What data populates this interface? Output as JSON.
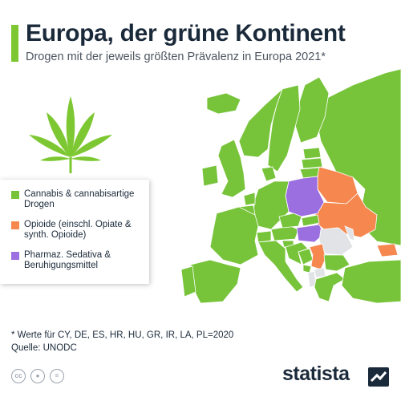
{
  "header": {
    "title": "Europa, der grüne Kontinent",
    "subtitle": "Drogen mit der jeweils größten Prävalenz in Europa 2021*"
  },
  "colors": {
    "cannabis": "#77c43a",
    "opioide": "#f5874f",
    "sedativa": "#9b6fe0",
    "no_data": "#e1e3e6",
    "sea": "#ffffff",
    "accent": "#7dc832"
  },
  "legend": [
    {
      "category": "cannabis",
      "label": "Cannabis & cannabisartige Drogen"
    },
    {
      "category": "opioide",
      "label": "Opioide (einschl. Opiate & synth. Opioide)"
    },
    {
      "category": "sedativa",
      "label": "Pharmaz. Sedativa & Beruhigungsmittel"
    }
  ],
  "map_data": {
    "Portugal": "cannabis",
    "Spain": "cannabis",
    "France": "cannabis",
    "Ireland": "cannabis",
    "United Kingdom": "cannabis",
    "Iceland": "cannabis",
    "Norway": "cannabis",
    "Sweden": "cannabis",
    "Finland": "cannabis",
    "Russia": "cannabis",
    "Denmark": "cannabis",
    "Germany": "cannabis",
    "Netherlands": "cannabis",
    "Belgium": "cannabis",
    "Switzerland": "cannabis",
    "Austria": "cannabis",
    "Italy": "cannabis",
    "Czechia": "cannabis",
    "Slovakia": "cannabis",
    "Estonia": "cannabis",
    "Latvia": "cannabis",
    "Lithuania": "cannabis",
    "Croatia": "cannabis",
    "Bosnia": "cannabis",
    "Montenegro": "cannabis",
    "Bulgaria": "cannabis",
    "Greece": "cannabis",
    "Turkey": "cannabis",
    "Slovenia": "cannabis",
    "Belarus": "opioide",
    "Ukraine": "opioide",
    "Serbia": "opioide",
    "Georgia": "opioide",
    "Poland": "sedativa",
    "Hungary": "sedativa",
    "Romania": "no_data",
    "Moldova": "no_data",
    "North Macedonia": "no_data",
    "Albania": "no_data"
  },
  "footer": {
    "note": "* Werte für CY, DE, ES, HR, HU, GR, IR, LA, PL=2020",
    "source": "Quelle: UNODC",
    "brand": "statista"
  },
  "icons": {
    "logo": "cannabis-leaf-icon",
    "license": [
      "cc-icon",
      "attribution-icon",
      "no-derivatives-icon"
    ],
    "brand_mark": "statista-logo-icon"
  }
}
